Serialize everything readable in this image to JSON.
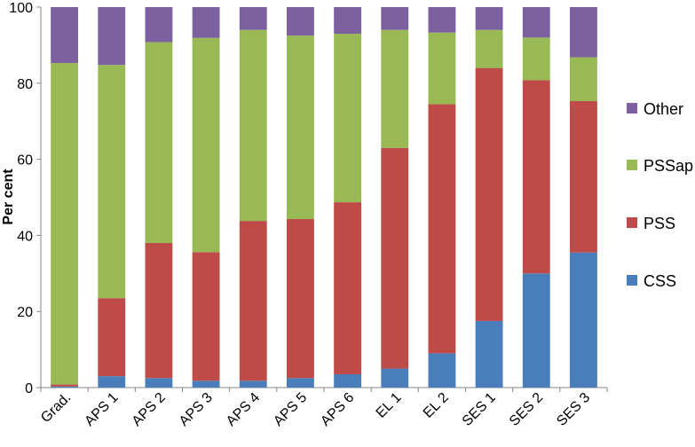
{
  "chart_data": {
    "type": "bar",
    "stacked": true,
    "categories": [
      "Grad.",
      "APS 1",
      "APS 2",
      "APS 3",
      "APS 4",
      "APS 5",
      "APS 6",
      "EL 1",
      "EL 2",
      "SES 1",
      "SES 2",
      "SES 3"
    ],
    "series": [
      {
        "name": "CSS",
        "color": "#4a7ebb",
        "values": [
          0.3,
          3,
          2.5,
          1.8,
          1.8,
          2.5,
          3.5,
          5,
          9,
          17.5,
          30,
          35.5
        ]
      },
      {
        "name": "PSS",
        "color": "#be4b48",
        "values": [
          0.5,
          20.5,
          35.5,
          33.8,
          42,
          41.8,
          45.2,
          58,
          65.5,
          66.5,
          50.8,
          39.8
        ]
      },
      {
        "name": "PSSap",
        "color": "#98b954",
        "values": [
          84.5,
          61.3,
          52.8,
          56.3,
          50.2,
          48.2,
          44.3,
          31,
          18.8,
          10,
          11.2,
          11.5
        ]
      },
      {
        "name": "Other",
        "color": "#7d60a0",
        "values": [
          14.7,
          15.2,
          9.2,
          8.1,
          6,
          7.5,
          7,
          6,
          6.7,
          6,
          8,
          13.2
        ]
      }
    ],
    "ylabel": "Per cent",
    "xlabel": "",
    "ylim": [
      0,
      100
    ],
    "yticks": [
      0,
      20,
      40,
      60,
      80,
      100
    ],
    "grid": false,
    "legend": {
      "position": "right",
      "order": [
        "Other",
        "PSSap",
        "PSS",
        "CSS"
      ]
    }
  }
}
